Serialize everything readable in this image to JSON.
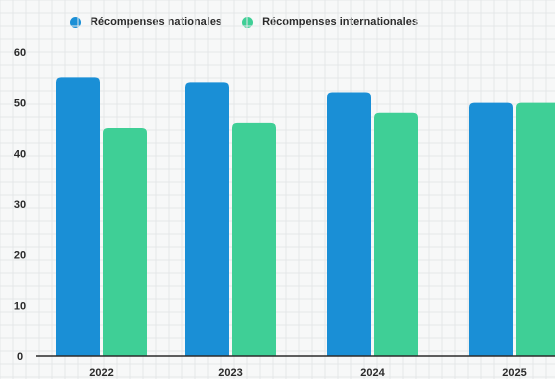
{
  "chart_data": {
    "type": "bar",
    "title": "",
    "xlabel": "",
    "ylabel": "",
    "categories": [
      "2022",
      "2023",
      "2024",
      "2025"
    ],
    "series": [
      {
        "name": "Récompenses nationales",
        "values": [
          55,
          54,
          52,
          50
        ],
        "color": "#1a8fd6"
      },
      {
        "name": "Récompenses internationales",
        "values": [
          45,
          46,
          48,
          50
        ],
        "color": "#3fcf96"
      }
    ],
    "ylim": [
      0,
      60
    ],
    "yticks": [
      0,
      10,
      20,
      30,
      40,
      50,
      60
    ],
    "grid": true,
    "legend_position": "top-left"
  }
}
